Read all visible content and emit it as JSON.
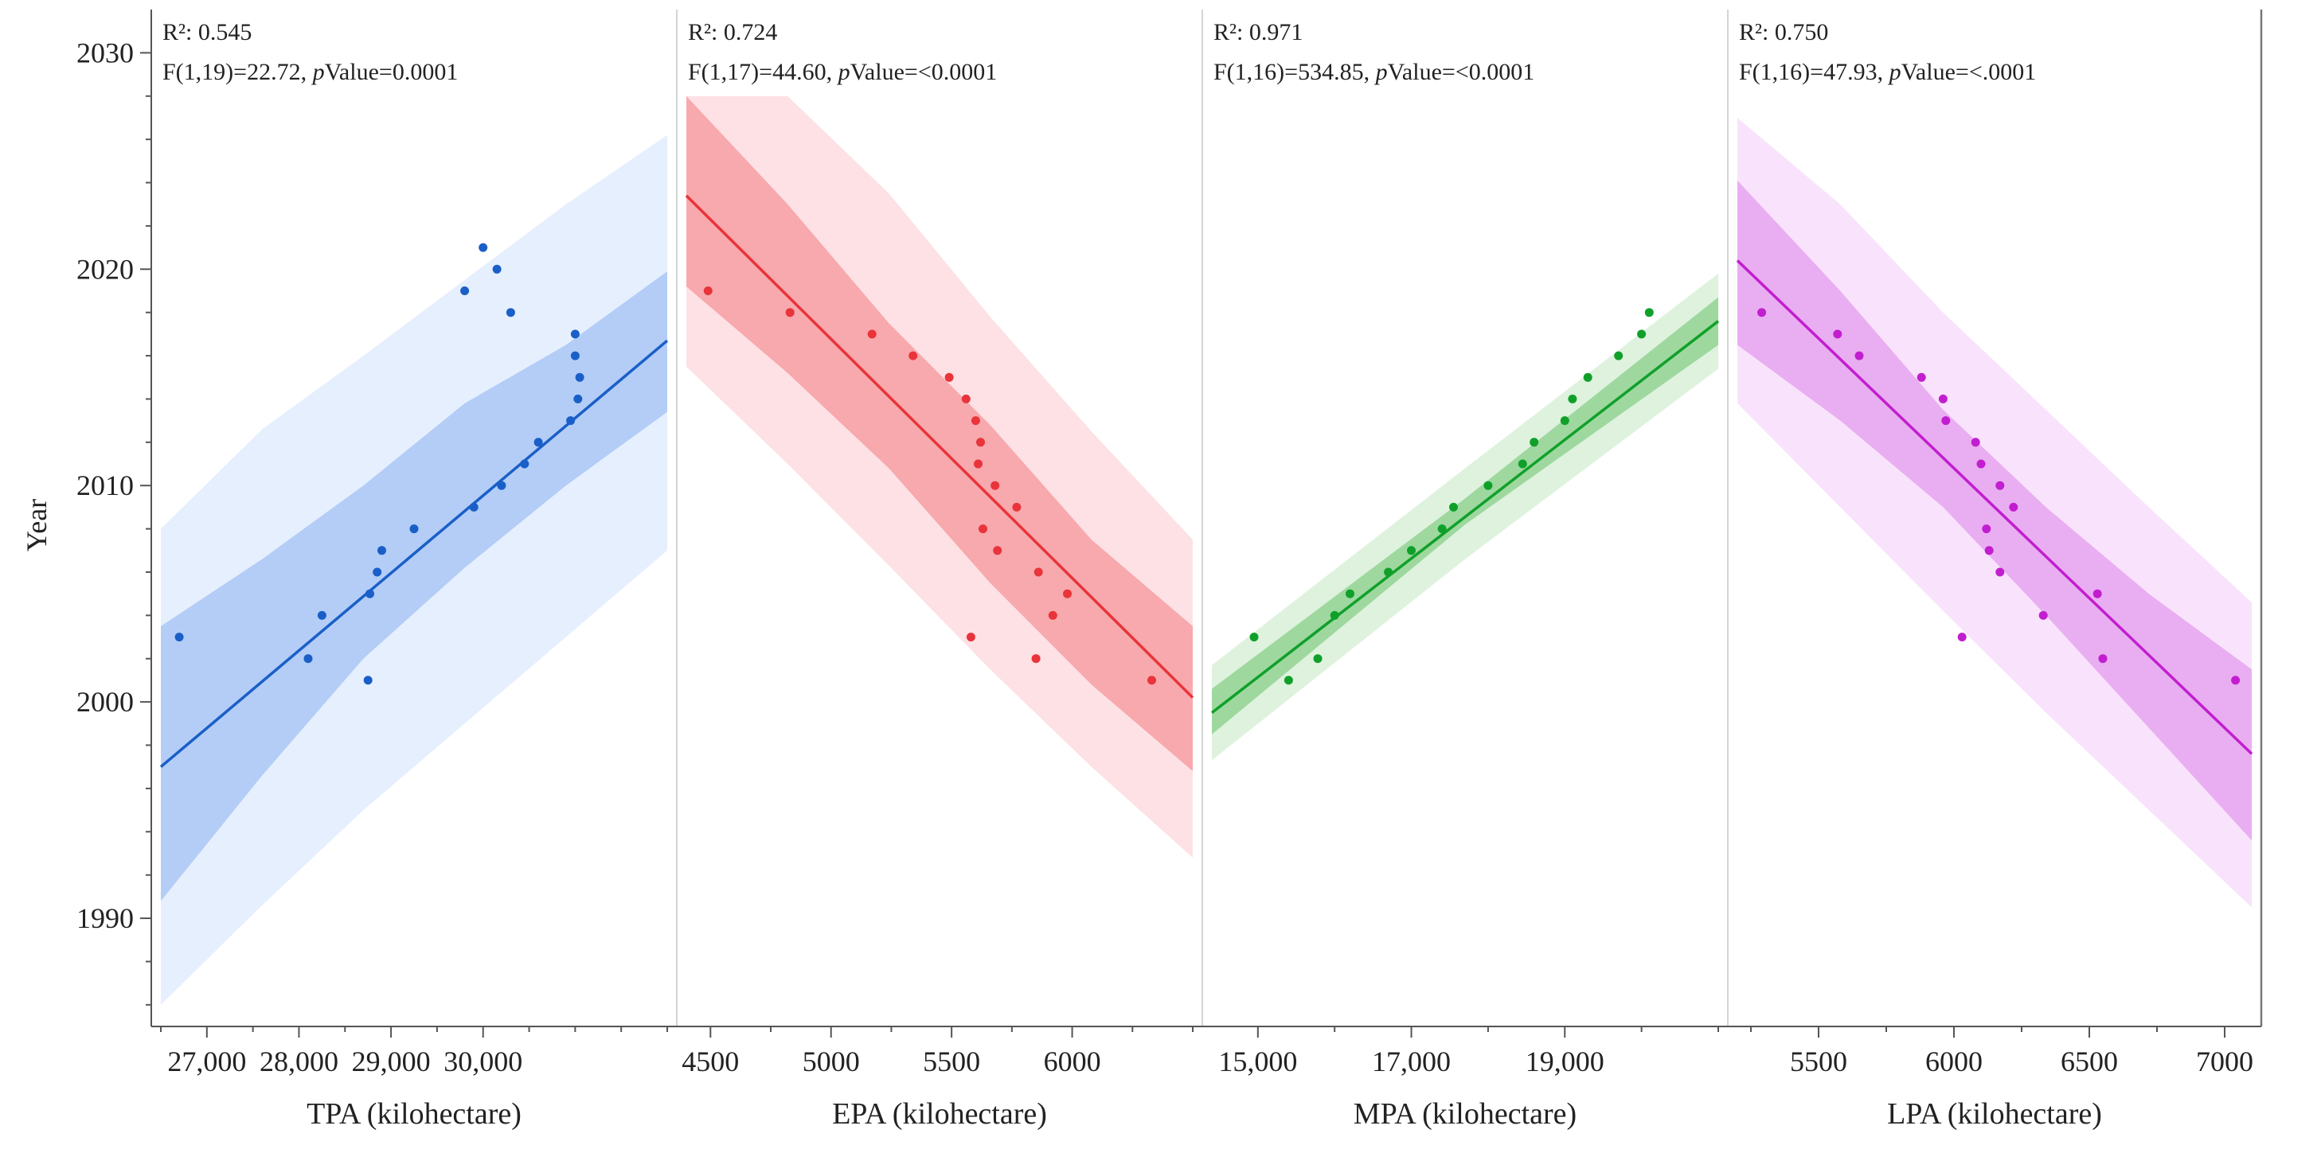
{
  "figure": {
    "ylabel": "Year",
    "yticks": [
      "2030",
      "2020",
      "2010",
      "2000",
      "1990"
    ]
  },
  "chart_data": [
    {
      "type": "scatter",
      "name": "TPA",
      "color": "#1a5fc8",
      "band_inner": "#b3cdf7",
      "band_outer": "#e6effd",
      "xlabel": "TPA (kilohectare)",
      "xlim": [
        26500,
        32000
      ],
      "xticks": [
        27000,
        28000,
        29000,
        30000
      ],
      "xtick_labels": [
        "27,000",
        "28,000",
        "29,000",
        "30,000"
      ],
      "ylim": [
        1985,
        2032
      ],
      "stats": {
        "r2": "R²: 0.545",
        "f_prefix": "F(1,19)=22.72, ",
        "p_letter": "p",
        "p_suffix": "Value=0.0001"
      },
      "fit": {
        "x": [
          26500,
          32000
        ],
        "y": [
          1997.0,
          2016.7
        ]
      },
      "ci_inner": {
        "x": [
          26500,
          27600,
          28700,
          29800,
          30900,
          32000
        ],
        "lower": [
          1990.8,
          1996.6,
          2002.0,
          2006.2,
          2010.0,
          2013.4
        ],
        "upper": [
          2003.5,
          2006.6,
          2010.0,
          2013.8,
          2016.5,
          2019.9
        ]
      },
      "ci_outer": {
        "x": [
          26500,
          27600,
          28700,
          29800,
          30900,
          32000
        ],
        "lower": [
          1986.0,
          1990.6,
          1995.0,
          1999.0,
          2003.0,
          2007.0
        ],
        "upper": [
          2008.0,
          2012.6,
          2016.0,
          2019.5,
          2023.0,
          2026.2
        ]
      },
      "points": [
        {
          "x": 26700,
          "y": 2003
        },
        {
          "x": 28100,
          "y": 2002
        },
        {
          "x": 28250,
          "y": 2004
        },
        {
          "x": 28750,
          "y": 2001
        },
        {
          "x": 28770,
          "y": 2005
        },
        {
          "x": 28850,
          "y": 2006
        },
        {
          "x": 28900,
          "y": 2007
        },
        {
          "x": 29250,
          "y": 2008
        },
        {
          "x": 29800,
          "y": 2019
        },
        {
          "x": 29900,
          "y": 2009
        },
        {
          "x": 30000,
          "y": 2021
        },
        {
          "x": 30150,
          "y": 2020
        },
        {
          "x": 30200,
          "y": 2010
        },
        {
          "x": 30300,
          "y": 2018
        },
        {
          "x": 30450,
          "y": 2011
        },
        {
          "x": 30600,
          "y": 2012
        },
        {
          "x": 30950,
          "y": 2013
        },
        {
          "x": 31000,
          "y": 2017
        },
        {
          "x": 31000,
          "y": 2016
        },
        {
          "x": 31050,
          "y": 2015
        },
        {
          "x": 31030,
          "y": 2014
        }
      ]
    },
    {
      "type": "scatter",
      "name": "EPA",
      "color": "#e8343a",
      "band_inner": "#f7a9ad",
      "band_outer": "#fde1e4",
      "xlabel": "EPA (kilohectare)",
      "xlim": [
        4400,
        6500
      ],
      "xticks": [
        4500,
        5000,
        5500,
        6000
      ],
      "xtick_labels": [
        "4500",
        "5000",
        "5500",
        "6000"
      ],
      "ylim": [
        1985,
        2032
      ],
      "stats": {
        "r2": "R²: 0.724",
        "f_prefix": "F(1,17)=44.60, ",
        "p_letter": "p",
        "p_suffix": "Value=<0.0001"
      },
      "fit": {
        "x": [
          4400,
          6500
        ],
        "y": [
          2023.4,
          2000.2
        ]
      },
      "ci_inner": {
        "x": [
          4400,
          4820,
          5240,
          5660,
          6080,
          6500
        ],
        "lower": [
          2019.2,
          2015.2,
          2010.8,
          2005.5,
          2000.8,
          1996.8
        ],
        "upper": [
          2028.0,
          2023.0,
          2017.5,
          2012.8,
          2007.5,
          2003.5
        ]
      },
      "ci_outer": {
        "x": [
          4400,
          4820,
          5240,
          5660,
          6080,
          6500
        ],
        "lower": [
          2015.5,
          2011.0,
          2006.3,
          2001.5,
          1997.0,
          1992.8
        ],
        "upper": [
          2028.0,
          2028.0,
          2023.5,
          2017.8,
          2012.5,
          2007.5
        ]
      },
      "points": [
        {
          "x": 4490,
          "y": 2019
        },
        {
          "x": 4830,
          "y": 2018
        },
        {
          "x": 5170,
          "y": 2017
        },
        {
          "x": 5340,
          "y": 2016
        },
        {
          "x": 5490,
          "y": 2015
        },
        {
          "x": 5560,
          "y": 2014
        },
        {
          "x": 5600,
          "y": 2013
        },
        {
          "x": 5620,
          "y": 2012
        },
        {
          "x": 5610,
          "y": 2011
        },
        {
          "x": 5680,
          "y": 2010
        },
        {
          "x": 5770,
          "y": 2009
        },
        {
          "x": 5630,
          "y": 2008
        },
        {
          "x": 5690,
          "y": 2007
        },
        {
          "x": 5860,
          "y": 2006
        },
        {
          "x": 5980,
          "y": 2005
        },
        {
          "x": 5920,
          "y": 2004
        },
        {
          "x": 5580,
          "y": 2003
        },
        {
          "x": 5850,
          "y": 2002
        },
        {
          "x": 6330,
          "y": 2001
        }
      ]
    },
    {
      "type": "scatter",
      "name": "MPA",
      "color": "#10a02a",
      "band_inner": "#9ed89f",
      "band_outer": "#def2de",
      "xlabel": "MPA (kilohectare)",
      "xlim": [
        14400,
        21000
      ],
      "xticks": [
        15000,
        17000,
        19000
      ],
      "xtick_labels": [
        "15,000",
        "17,000",
        "19,000"
      ],
      "ylim": [
        1985,
        2032
      ],
      "stats": {
        "r2": "R²: 0.971",
        "f_prefix": "F(1,16)=534.85, ",
        "p_letter": "p",
        "p_suffix": "Value=<0.0001"
      },
      "fit": {
        "x": [
          14400,
          21000
        ],
        "y": [
          1999.5,
          2017.6
        ]
      },
      "ci_inner": {
        "x": [
          14400,
          17700,
          21000
        ],
        "lower": [
          1998.5,
          2008.2,
          2016.5
        ],
        "upper": [
          2000.6,
          2009.4,
          2018.7
        ]
      },
      "ci_outer": {
        "x": [
          14400,
          17700,
          21000
        ],
        "lower": [
          1997.3,
          2006.6,
          2015.4
        ],
        "upper": [
          2001.7,
          2010.8,
          2019.8
        ]
      },
      "points": [
        {
          "x": 14950,
          "y": 2003
        },
        {
          "x": 15400,
          "y": 2001
        },
        {
          "x": 15780,
          "y": 2002
        },
        {
          "x": 16000,
          "y": 2004
        },
        {
          "x": 16200,
          "y": 2005
        },
        {
          "x": 16700,
          "y": 2006
        },
        {
          "x": 17000,
          "y": 2007
        },
        {
          "x": 17400,
          "y": 2008
        },
        {
          "x": 17550,
          "y": 2009
        },
        {
          "x": 18000,
          "y": 2010
        },
        {
          "x": 18450,
          "y": 2011
        },
        {
          "x": 18600,
          "y": 2012
        },
        {
          "x": 19000,
          "y": 2013
        },
        {
          "x": 19100,
          "y": 2014
        },
        {
          "x": 19300,
          "y": 2015
        },
        {
          "x": 19700,
          "y": 2016
        },
        {
          "x": 20000,
          "y": 2017
        },
        {
          "x": 20100,
          "y": 2018
        }
      ]
    },
    {
      "type": "scatter",
      "name": "LPA",
      "color": "#c21ecf",
      "band_inner": "#e9aef1",
      "band_outer": "#f9e3fc",
      "xlabel": "LPA (kilohectare)",
      "xlim": [
        5200,
        7100
      ],
      "xticks": [
        5500,
        6000,
        6500,
        7000
      ],
      "xtick_labels": [
        "5500",
        "6000",
        "6500",
        "7000"
      ],
      "ylim": [
        1985,
        2032
      ],
      "stats": {
        "r2": "R²: 0.750",
        "f_prefix": "F(1,16)=47.93, ",
        "p_letter": "p",
        "p_suffix": "Value=<.0001"
      },
      "fit": {
        "x": [
          5200,
          7100
        ],
        "y": [
          2020.4,
          1997.6
        ]
      },
      "ci_inner": {
        "x": [
          5200,
          5580,
          5960,
          6340,
          6720,
          7100
        ],
        "lower": [
          2016.5,
          2013.0,
          2009.0,
          2004.0,
          1998.8,
          1993.6
        ],
        "upper": [
          2024.1,
          2019.0,
          2013.5,
          2009.0,
          2005.0,
          2001.5
        ]
      },
      "ci_outer": {
        "x": [
          5200,
          5580,
          5960,
          6340,
          6720,
          7100
        ],
        "lower": [
          2013.8,
          2009.0,
          2004.2,
          1999.5,
          1995.0,
          1990.5
        ],
        "upper": [
          2027.0,
          2023.0,
          2018.0,
          2013.5,
          2009.0,
          2004.6
        ]
      },
      "points": [
        {
          "x": 5290,
          "y": 2018
        },
        {
          "x": 5570,
          "y": 2017
        },
        {
          "x": 5650,
          "y": 2016
        },
        {
          "x": 5880,
          "y": 2015
        },
        {
          "x": 5960,
          "y": 2014
        },
        {
          "x": 5970,
          "y": 2013
        },
        {
          "x": 6080,
          "y": 2012
        },
        {
          "x": 6100,
          "y": 2011
        },
        {
          "x": 6170,
          "y": 2010
        },
        {
          "x": 6220,
          "y": 2009
        },
        {
          "x": 6120,
          "y": 2008
        },
        {
          "x": 6130,
          "y": 2007
        },
        {
          "x": 6170,
          "y": 2006
        },
        {
          "x": 6530,
          "y": 2005
        },
        {
          "x": 6330,
          "y": 2004
        },
        {
          "x": 6030,
          "y": 2003
        },
        {
          "x": 6550,
          "y": 2002
        },
        {
          "x": 7040,
          "y": 2001
        }
      ]
    }
  ]
}
